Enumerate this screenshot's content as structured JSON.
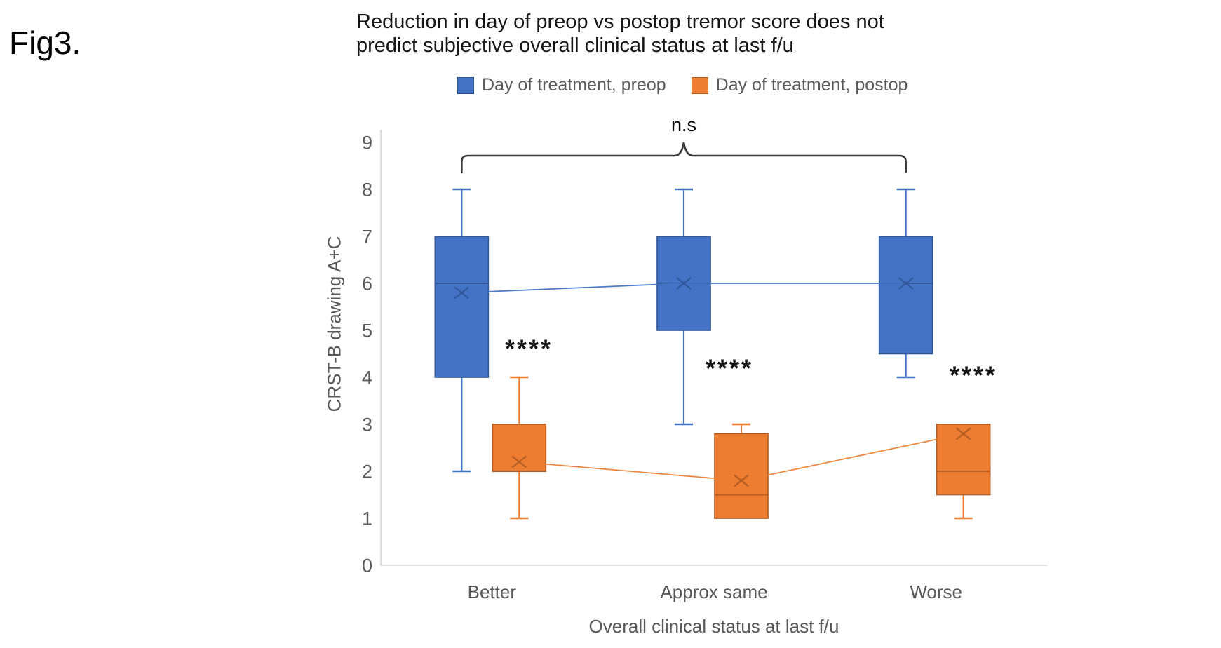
{
  "figure_label": "Fig3.",
  "chart_title": "Reduction in day of preop vs postop tremor score does not\npredict subjective overall clinical status at last f/u",
  "annotations": {
    "ns_label": "n.s",
    "significance_markers": [
      "****",
      "****",
      "****"
    ]
  },
  "legend": {
    "items": [
      {
        "label": "Day of treatment, preop",
        "color": "#4472C4",
        "border": "#2F5597"
      },
      {
        "label": "Day of treatment, postop",
        "color": "#ED7D31",
        "border": "#AE5A21"
      }
    ]
  },
  "colors": {
    "preop_fill": "#4472C4",
    "preop_border": "#2F5597",
    "postop_fill": "#ED7D31",
    "postop_border": "#AE5A21",
    "axis_line": "#D6D6D6",
    "tick_text": "#595959",
    "bracket": "#3A3A3A"
  },
  "chart_data": {
    "type": "boxplot",
    "title": "Reduction in day of preop vs postop tremor score does not predict subjective overall clinical status at last f/u",
    "categories": [
      "Better",
      "Approx same",
      "Worse"
    ],
    "xlabel": "Overall clinical status at last f/u",
    "ylabel": "CRST-B drawing A+C",
    "ylim": [
      0,
      9
    ],
    "yticks": [
      0,
      1,
      2,
      3,
      4,
      5,
      6,
      7,
      8,
      9
    ],
    "grid": false,
    "legend_position": "top",
    "series": [
      {
        "name": "Day of treatment, preop",
        "boxes": [
          {
            "category": "Better",
            "min": 2,
            "q1": 4,
            "median": 6,
            "q3": 7,
            "max": 8,
            "mean": 5.8
          },
          {
            "category": "Approx same",
            "min": 3,
            "q1": 5,
            "median": 6,
            "q3": 7,
            "max": 8,
            "mean": 6.0
          },
          {
            "category": "Worse",
            "min": 4,
            "q1": 4.5,
            "median": 6,
            "q3": 7,
            "max": 8,
            "mean": 6.0
          }
        ]
      },
      {
        "name": "Day of treatment, postop",
        "boxes": [
          {
            "category": "Better",
            "min": 1,
            "q1": 2,
            "median": 2,
            "q3": 3,
            "max": 4,
            "mean": 2.2
          },
          {
            "category": "Approx same",
            "min": 1,
            "q1": 1,
            "median": 1.5,
            "q3": 2.8,
            "max": 3,
            "mean": 1.8
          },
          {
            "category": "Worse",
            "min": 1,
            "q1": 1.5,
            "median": 2,
            "q3": 3,
            "max": 3,
            "mean": 2.8
          }
        ]
      }
    ],
    "comparisons": [
      {
        "label": "n.s",
        "series": "Day of treatment, preop",
        "between_categories": [
          "Better",
          "Worse"
        ]
      },
      {
        "label": "****",
        "category": "Better",
        "between_series": [
          "preop",
          "postop"
        ]
      },
      {
        "label": "****",
        "category": "Approx same",
        "between_series": [
          "preop",
          "postop"
        ]
      },
      {
        "label": "****",
        "category": "Worse",
        "between_series": [
          "preop",
          "postop"
        ]
      }
    ]
  }
}
